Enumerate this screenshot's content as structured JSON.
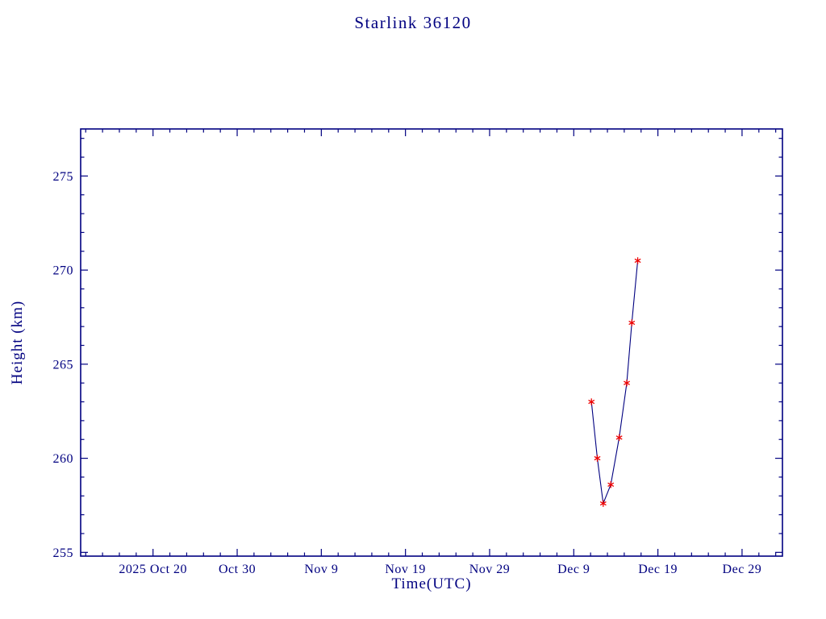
{
  "chart_data": {
    "type": "line",
    "title": "Starlink 36120",
    "xlabel": "Time(UTC)",
    "ylabel": "Height (km)",
    "axis_color": "#000080",
    "line_color": "#000080",
    "marker_color": "#ee0000",
    "marker": "asterisk",
    "y_ticks": [
      255,
      260,
      265,
      270,
      275
    ],
    "y_minor_step": 1,
    "ylim": [
      254.8,
      277.5
    ],
    "x_tick_labels": [
      "2025 Oct 20",
      "Oct 30",
      "Nov 9",
      "Nov 19",
      "Nov 29",
      "Dec 9",
      "Dec 19",
      "Dec 29"
    ],
    "x_tick_days_from_oct20": [
      0,
      10,
      20,
      30,
      40,
      50,
      60,
      70
    ],
    "x_minor_step_days": 2,
    "xlim_days_from_oct20": [
      -8.6,
      74.8
    ],
    "series": [
      {
        "name": "Height (km)",
        "points": [
          {
            "day_offset_from_2025_oct_20": 52.1,
            "height_km": 263.0
          },
          {
            "day_offset_from_2025_oct_20": 52.8,
            "height_km": 260.0
          },
          {
            "day_offset_from_2025_oct_20": 53.5,
            "height_km": 257.6
          },
          {
            "day_offset_from_2025_oct_20": 54.4,
            "height_km": 258.6
          },
          {
            "day_offset_from_2025_oct_20": 55.4,
            "height_km": 261.1
          },
          {
            "day_offset_from_2025_oct_20": 56.3,
            "height_km": 264.0
          },
          {
            "day_offset_from_2025_oct_20": 56.9,
            "height_km": 267.2
          },
          {
            "day_offset_from_2025_oct_20": 57.6,
            "height_km": 270.5
          }
        ]
      }
    ]
  }
}
